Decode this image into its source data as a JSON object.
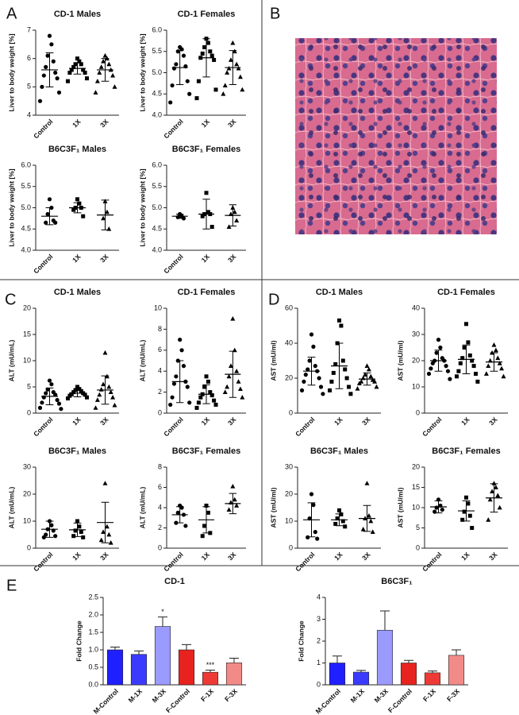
{
  "panel_labels": [
    "A",
    "B",
    "C",
    "D",
    "E"
  ],
  "chart_data": [
    {
      "type": "dotplot",
      "title": "CD-1 Males",
      "y_label": "Liver to body weight [%]",
      "categories": [
        "Control",
        "1X",
        "3X"
      ],
      "markers": [
        "circle",
        "square",
        "triangle"
      ],
      "color": "#000000",
      "points": [
        [
          6.8,
          6.5,
          6.1,
          5.9,
          5.7,
          5.5,
          5.4,
          5.3,
          5.0,
          4.8,
          4.5
        ],
        [
          6.0,
          5.9,
          5.8,
          5.8,
          5.7,
          5.6,
          5.6,
          5.5,
          5.5,
          5.3,
          5.2
        ],
        [
          6.1,
          6.0,
          5.9,
          5.8,
          5.7,
          5.6,
          5.5,
          5.4,
          5.2,
          5.0,
          4.8
        ]
      ],
      "means": [
        5.6,
        5.65,
        5.6
      ],
      "sd": [
        0.6,
        0.2,
        0.4
      ],
      "ylim": [
        4,
        7
      ],
      "yticks": [
        4,
        5,
        6,
        7
      ]
    },
    {
      "type": "dotplot",
      "title": "CD-1 Females",
      "y_label": "Liver to body weight [%]",
      "categories": [
        "Control",
        "1X",
        "3X"
      ],
      "markers": [
        "circle",
        "square",
        "triangle"
      ],
      "color": "#000000",
      "points": [
        [
          5.6,
          5.55,
          5.5,
          5.4,
          5.2,
          5.15,
          5.1,
          4.8,
          4.7,
          4.5,
          4.3
        ],
        [
          5.8,
          5.7,
          5.6,
          5.5,
          5.45,
          5.4,
          5.35,
          5.3,
          4.8,
          4.6,
          4.4
        ],
        [
          5.7,
          5.5,
          5.3,
          5.2,
          5.1,
          5.1,
          5.0,
          4.9,
          4.7,
          4.6,
          4.5
        ]
      ],
      "means": [
        5.12,
        5.35,
        5.12
      ],
      "sd": [
        0.4,
        0.45,
        0.4
      ],
      "ylim": [
        4,
        6
      ],
      "yticks": [
        {
          "value": 4,
          "label": "4.0"
        },
        4.5,
        {
          "value": 5,
          "label": "5.0"
        },
        5.5,
        {
          "value": 6,
          "label": "6.0"
        }
      ]
    },
    {
      "type": "dotplot",
      "title": "B6C3F₁ Males",
      "y_label": "Liver to body weight [%]",
      "categories": [
        "Control",
        "1X",
        "3X"
      ],
      "markers": [
        "circle",
        "square",
        "triangle"
      ],
      "color": "#000000",
      "points": [
        [
          5.2,
          5.0,
          4.85,
          4.7,
          4.65,
          4.65
        ],
        [
          5.2,
          5.1,
          5.0,
          5.0,
          4.95,
          4.8
        ],
        [
          5.15,
          4.9,
          4.75,
          4.5
        ]
      ],
      "means": [
        4.8,
        5.0,
        4.83
      ],
      "sd": [
        0.2,
        0.12,
        0.35
      ],
      "ylim": [
        4,
        6
      ],
      "yticks": [
        {
          "value": 4,
          "label": "4.0"
        },
        4.5,
        {
          "value": 5,
          "label": "5.0"
        },
        5.5,
        {
          "value": 6,
          "label": "6.0"
        }
      ]
    },
    {
      "type": "dotplot",
      "title": "B6C3F₁ Females",
      "y_label": "Liver to body weight [%]",
      "categories": [
        "Control",
        "1X",
        "3X"
      ],
      "markers": [
        "circle",
        "square",
        "triangle"
      ],
      "color": "#000000",
      "points": [
        [
          4.85,
          4.8,
          4.78,
          4.75
        ],
        [
          5.35,
          4.9,
          4.85,
          4.85,
          4.8,
          4.55
        ],
        [
          5.0,
          4.9,
          4.85,
          4.7,
          4.55
        ]
      ],
      "means": [
        4.8,
        4.85,
        4.82
      ],
      "sd": [
        0.05,
        0.35,
        0.25
      ],
      "ylim": [
        4,
        6
      ],
      "yticks": [
        {
          "value": 4,
          "label": "4.0"
        },
        4.5,
        {
          "value": 5,
          "label": "5.0"
        },
        5.5,
        {
          "value": 6,
          "label": "6.0"
        }
      ]
    },
    {
      "type": "dotplot",
      "title": "CD-1 Males",
      "y_label": "ALT (mU/mL)",
      "categories": [
        "Control",
        "1X",
        "3X"
      ],
      "markers": [
        "circle",
        "square",
        "triangle"
      ],
      "color": "#000000",
      "points": [
        [
          6.2,
          5.5,
          4.5,
          4,
          3.8,
          3.5,
          3,
          2.5,
          2,
          1.8,
          1,
          0.8
        ],
        [
          5,
          4.6,
          4.4,
          4.2,
          4,
          3.8,
          3.6,
          3.5,
          3.3,
          3,
          2.8
        ],
        [
          11.5,
          7,
          5.5,
          5,
          4.5,
          4,
          3.5,
          3,
          2.5,
          1.5,
          1
        ]
      ],
      "means": [
        3.2,
        3.8,
        4.4
      ],
      "sd": [
        1.6,
        0.7,
        2.7
      ],
      "ylim": [
        0,
        20
      ],
      "yticks": [
        0,
        5,
        10,
        15,
        20
      ]
    },
    {
      "type": "dotplot",
      "title": "CD-1 Females",
      "y_label": "ALT (mU/mL)",
      "categories": [
        "Control",
        "1X",
        "3X"
      ],
      "markers": [
        "circle",
        "square",
        "triangle"
      ],
      "color": "#000000",
      "points": [
        [
          7,
          6,
          5,
          4.5,
          3.5,
          3,
          2.8,
          2.5,
          1.5,
          1,
          0.8
        ],
        [
          3.5,
          3,
          2.5,
          2,
          1.8,
          1.7,
          1.5,
          1.2,
          1,
          0.8,
          0.5
        ],
        [
          9,
          6,
          4.5,
          4,
          3.5,
          3,
          2.5,
          2.3,
          2,
          1.5
        ]
      ],
      "means": [
        3.0,
        1.8,
        3.7
      ],
      "sd": [
        2.0,
        0.9,
        2.2
      ],
      "ylim": [
        0,
        10
      ],
      "yticks": [
        0,
        2,
        4,
        6,
        8,
        10
      ]
    },
    {
      "type": "dotplot",
      "title": "B6C3F₁ Males",
      "y_label": "ALT (mU/mL)",
      "categories": [
        "Control",
        "1X",
        "3X"
      ],
      "markers": [
        "circle",
        "square",
        "triangle"
      ],
      "color": "#000000",
      "points": [
        [
          10,
          8.5,
          7,
          6.5,
          5,
          4.5,
          4
        ],
        [
          10,
          8,
          6.5,
          6,
          4.5,
          4
        ],
        [
          24,
          8,
          6,
          5,
          3,
          2
        ]
      ],
      "means": [
        7,
        6.8,
        9.5
      ],
      "sd": [
        3,
        2.5,
        7.5
      ],
      "ylim": [
        0,
        30
      ],
      "yticks": [
        0,
        10,
        20,
        30
      ]
    },
    {
      "type": "dotplot",
      "title": "B6C3F₁ Females",
      "y_label": "ALT (mU/mL)",
      "categories": [
        "Control",
        "1X",
        "3X"
      ],
      "markers": [
        "circle",
        "square",
        "triangle"
      ],
      "color": "#000000",
      "points": [
        [
          4.2,
          4,
          3.5,
          3.3,
          2.5,
          2.2
        ],
        [
          4.2,
          3.5,
          2.2,
          1.5,
          1.2
        ],
        [
          6.1,
          4.8,
          4.5,
          4.2,
          3.8
        ]
      ],
      "means": [
        3.3,
        2.8,
        4.4
      ],
      "sd": [
        0.8,
        1.3,
        1.0
      ],
      "ylim": [
        0,
        8
      ],
      "yticks": [
        0,
        2,
        4,
        6,
        8
      ]
    },
    {
      "type": "dotplot",
      "title": "CD-1 Males",
      "y_label": "AST (mU/ml)",
      "categories": [
        "Control",
        "1X",
        "3X"
      ],
      "markers": [
        "circle",
        "square",
        "triangle"
      ],
      "color": "#000000",
      "points": [
        [
          45,
          38,
          30,
          27,
          25,
          24,
          22,
          20,
          18,
          15,
          13,
          11
        ],
        [
          53,
          50,
          40,
          30,
          28,
          25,
          23,
          20,
          18,
          15,
          13,
          11
        ],
        [
          27,
          25,
          22,
          21,
          20,
          19,
          18,
          18,
          17,
          15,
          14
        ]
      ],
      "means": [
        24,
        27,
        19.5
      ],
      "sd": [
        8,
        13,
        3.5
      ],
      "ylim": [
        0,
        60
      ],
      "yticks": [
        0,
        20,
        40,
        60
      ]
    },
    {
      "type": "dotplot",
      "title": "CD-1 Females",
      "y_label": "AST (mU/ml)",
      "categories": [
        "Control",
        "1X",
        "3X"
      ],
      "markers": [
        "circle",
        "square",
        "triangle"
      ],
      "color": "#000000",
      "points": [
        [
          28,
          25,
          23,
          21,
          20,
          20,
          19,
          18,
          17,
          16,
          15,
          13
        ],
        [
          34,
          27,
          25,
          22,
          21,
          20,
          19,
          18,
          16,
          15,
          14,
          12
        ],
        [
          26,
          24,
          23,
          21,
          20,
          19,
          18,
          17,
          15,
          14
        ]
      ],
      "means": [
        20,
        20.5,
        19.5
      ],
      "sd": [
        4,
        5.5,
        3.5
      ],
      "ylim": [
        0,
        40
      ],
      "yticks": [
        0,
        10,
        20,
        30,
        40
      ]
    },
    {
      "type": "dotplot",
      "title": "B6C3F₁ Males",
      "y_label": "AST (mU/ml)",
      "categories": [
        "Control",
        "1X",
        "3X"
      ],
      "markers": [
        "circle",
        "square",
        "triangle"
      ],
      "color": "#000000",
      "points": [
        [
          20,
          16,
          11,
          6,
          4,
          3.5
        ],
        [
          14,
          12.5,
          11,
          10,
          9,
          8
        ],
        [
          24,
          12,
          11,
          10,
          7,
          6
        ]
      ],
      "means": [
        10.5,
        10.5,
        11
      ],
      "sd": [
        6.3,
        2.2,
        4.8
      ],
      "ylim": [
        0,
        30
      ],
      "yticks": [
        0,
        10,
        20,
        30
      ]
    },
    {
      "type": "dotplot",
      "title": "B6C3F₁ Females",
      "y_label": "AST (mU/ml)",
      "categories": [
        "Control",
        "1X",
        "3X"
      ],
      "markers": [
        "circle",
        "square",
        "triangle"
      ],
      "color": "#000000",
      "points": [
        [
          12,
          10.5,
          10,
          9.5,
          9
        ],
        [
          12.5,
          11,
          9,
          8,
          7,
          5
        ],
        [
          16,
          15,
          14,
          13,
          12,
          10,
          7
        ]
      ],
      "means": [
        10.2,
        9.2,
        12.4
      ],
      "sd": [
        1.5,
        2.5,
        3.5
      ],
      "ylim": [
        0,
        20
      ],
      "yticks": [
        0,
        5,
        10,
        15,
        20
      ]
    },
    {
      "type": "bar",
      "title": "CD-1",
      "y_label": "Fold Change",
      "categories": [
        "M-Control",
        "M-1X",
        "M-3X",
        "F-Control",
        "F-1X",
        "F-3X"
      ],
      "values": [
        1.0,
        0.87,
        1.67,
        1.0,
        0.36,
        0.63
      ],
      "errors": [
        0.08,
        0.1,
        0.27,
        0.15,
        0.06,
        0.13
      ],
      "significance": [
        null,
        null,
        "*",
        null,
        "***",
        null
      ],
      "colors": [
        "#1f1fff",
        "#3b3bff",
        "#9a9aff",
        "#e8231f",
        "#ee3a36",
        "#f28b88"
      ],
      "ylim": [
        0,
        2.5
      ],
      "yticks": [
        {
          "value": 0,
          "label": "0.0"
        },
        0.5,
        {
          "value": 1,
          "label": "1.0"
        },
        1.5,
        {
          "value": 2,
          "label": "2.0"
        },
        2.5
      ]
    },
    {
      "type": "bar",
      "title": "B6C3F₁",
      "y_label": "Fold Change",
      "categories": [
        "M-Control",
        "M-1X",
        "M-3X",
        "F-Control",
        "F-1X",
        "F-3X"
      ],
      "values": [
        1.0,
        0.58,
        2.5,
        1.0,
        0.55,
        1.35
      ],
      "errors": [
        0.32,
        0.08,
        0.88,
        0.12,
        0.08,
        0.25
      ],
      "significance": [
        null,
        null,
        null,
        null,
        null,
        null
      ],
      "colors": [
        "#1f1fff",
        "#3b3bff",
        "#9a9aff",
        "#e8231f",
        "#ee3a36",
        "#f28b88"
      ],
      "ylim": [
        0,
        4
      ],
      "yticks": [
        0,
        1,
        2,
        3,
        4
      ]
    }
  ]
}
